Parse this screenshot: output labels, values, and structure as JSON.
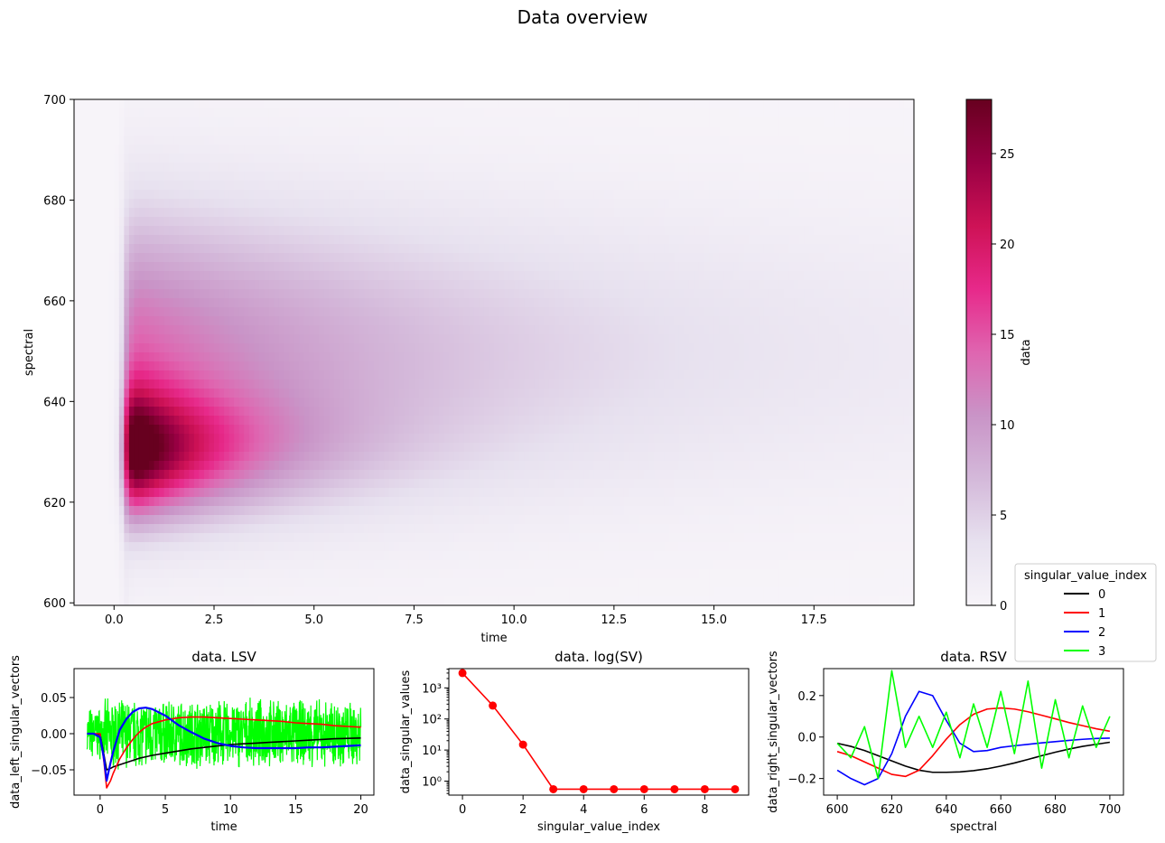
{
  "figure": {
    "title": "Data overview"
  },
  "colors": {
    "cmap": [
      "#f7f4f9",
      "#e7e1ef",
      "#d4b9da",
      "#c994c7",
      "#df65b0",
      "#e7298a",
      "#ce1256",
      "#980043",
      "#67001f"
    ],
    "series": [
      "#000000",
      "#ff0000",
      "#0000ff",
      "#00ff00"
    ]
  },
  "chart_data": [
    {
      "type": "heatmap",
      "xlabel": "time",
      "ylabel": "spectral",
      "colorbar_label": "data",
      "xlim": [
        -1,
        20
      ],
      "ylim": [
        599.5,
        700
      ],
      "clim": [
        0,
        28
      ],
      "xticks": [
        0.0,
        2.5,
        5.0,
        7.5,
        10.0,
        12.5,
        15.0,
        17.5
      ],
      "xtick_labels": [
        "0.0",
        "2.5",
        "5.0",
        "7.5",
        "10.0",
        "12.5",
        "15.0",
        "17.5"
      ],
      "yticks": [
        600,
        620,
        640,
        660,
        680,
        700
      ],
      "ytick_labels": [
        "600",
        "620",
        "640",
        "660",
        "680",
        "700"
      ],
      "cticks": [
        0,
        5,
        10,
        15,
        20,
        25
      ],
      "ctick_labels": [
        "0",
        "5",
        "10",
        "15",
        "20",
        "25"
      ],
      "components": [
        {
          "center": 630,
          "width": 12,
          "amplitude": 28,
          "decay": 0.4
        },
        {
          "center": 650,
          "width": 28,
          "amplitude": 14,
          "decay": 0.1
        }
      ],
      "irf_time": 0.3,
      "legend": {
        "title": "singular_value_index",
        "entries": [
          "0",
          "1",
          "2",
          "3"
        ],
        "placement": "lower right"
      }
    },
    {
      "type": "line",
      "title": "data. LSV",
      "xlabel": "time",
      "ylabel": "data_left_singular_vectors",
      "xlim": [
        -2,
        21
      ],
      "ylim": [
        -0.085,
        0.09
      ],
      "xticks": [
        0,
        5,
        10,
        15,
        20
      ],
      "xtick_labels": [
        "0",
        "5",
        "10",
        "15",
        "20"
      ],
      "yticks": [
        0.05,
        0.0,
        -0.05
      ],
      "ytick_labels": [
        "0.05",
        "0.00",
        "−0.05"
      ],
      "x": [
        -1,
        -0.5,
        0,
        0.3,
        0.5,
        0.8,
        1,
        1.5,
        2,
        2.5,
        3,
        3.5,
        4,
        5,
        6,
        7,
        8,
        9,
        10,
        11,
        12,
        13,
        14,
        15,
        16,
        17,
        18,
        19,
        20
      ],
      "series": [
        {
          "name": "0",
          "values": [
            0,
            0,
            -0.001,
            -0.03,
            -0.05,
            -0.048,
            -0.046,
            -0.043,
            -0.04,
            -0.037,
            -0.034,
            -0.032,
            -0.03,
            -0.027,
            -0.024,
            -0.021,
            -0.019,
            -0.017,
            -0.015,
            -0.014,
            -0.013,
            -0.012,
            -0.011,
            -0.01,
            -0.009,
            -0.008,
            -0.007,
            -0.0065,
            -0.006
          ]
        },
        {
          "name": "1",
          "values": [
            0,
            0,
            0,
            -0.04,
            -0.075,
            -0.065,
            -0.055,
            -0.035,
            -0.02,
            -0.008,
            0.002,
            0.009,
            0.014,
            0.019,
            0.022,
            0.023,
            0.023,
            0.022,
            0.021,
            0.02,
            0.019,
            0.018,
            0.017,
            0.015,
            0.014,
            0.013,
            0.011,
            0.01,
            0.009
          ]
        },
        {
          "name": "2",
          "values": [
            0,
            0,
            -0.005,
            -0.035,
            -0.065,
            -0.04,
            -0.025,
            0.005,
            0.02,
            0.03,
            0.035,
            0.036,
            0.034,
            0.025,
            0.012,
            0.002,
            -0.007,
            -0.013,
            -0.017,
            -0.019,
            -0.02,
            -0.02,
            -0.02,
            -0.02,
            -0.019,
            -0.019,
            -0.018,
            -0.017,
            -0.016
          ]
        },
        {
          "name": "3",
          "noise_band": [
            -0.06,
            0.06
          ]
        }
      ]
    },
    {
      "type": "line",
      "title": "data. log(SV)",
      "xlabel": "singular_value_index",
      "ylabel": "data_singular_values",
      "yscale": "log",
      "xlim": [
        -0.45,
        9.45
      ],
      "ylim_log10": [
        -0.45,
        3.62
      ],
      "xticks": [
        0,
        2,
        4,
        6,
        8
      ],
      "xtick_labels": [
        "0",
        "2",
        "4",
        "6",
        "8"
      ],
      "ytick_labels": [
        "10⁰",
        "10¹",
        "10²",
        "10³"
      ],
      "x": [
        0,
        1,
        2,
        3,
        4,
        5,
        6,
        7,
        8,
        9
      ],
      "values": [
        3000,
        270,
        15,
        0.55,
        0.55,
        0.55,
        0.55,
        0.55,
        0.55,
        0.55
      ]
    },
    {
      "type": "line",
      "title": "data. RSV",
      "xlabel": "spectral",
      "ylabel": "data_right_singular_vectors",
      "xlim": [
        595,
        705
      ],
      "ylim": [
        -0.28,
        0.33
      ],
      "xticks": [
        600,
        620,
        640,
        660,
        680,
        700
      ],
      "xtick_labels": [
        "600",
        "620",
        "640",
        "660",
        "680",
        "700"
      ],
      "yticks": [
        0.2,
        0.0,
        -0.2
      ],
      "ytick_labels": [
        "0.2",
        "0.0",
        "−0.2"
      ],
      "x": [
        600,
        605,
        610,
        615,
        620,
        625,
        630,
        635,
        640,
        645,
        650,
        655,
        660,
        665,
        670,
        675,
        680,
        685,
        690,
        695,
        700
      ],
      "series": [
        {
          "name": "0",
          "values": [
            -0.03,
            -0.045,
            -0.065,
            -0.09,
            -0.115,
            -0.14,
            -0.16,
            -0.17,
            -0.17,
            -0.168,
            -0.162,
            -0.153,
            -0.14,
            -0.125,
            -0.108,
            -0.09,
            -0.073,
            -0.058,
            -0.045,
            -0.035,
            -0.025
          ]
        },
        {
          "name": "1",
          "values": [
            -0.07,
            -0.09,
            -0.12,
            -0.15,
            -0.18,
            -0.19,
            -0.16,
            -0.09,
            -0.01,
            0.06,
            0.11,
            0.135,
            0.14,
            0.135,
            0.122,
            0.105,
            0.088,
            0.07,
            0.055,
            0.04,
            0.028
          ]
        },
        {
          "name": "2",
          "values": [
            -0.16,
            -0.2,
            -0.23,
            -0.2,
            -0.08,
            0.1,
            0.22,
            0.2,
            0.08,
            -0.03,
            -0.07,
            -0.065,
            -0.05,
            -0.042,
            -0.035,
            -0.028,
            -0.022,
            -0.016,
            -0.011,
            -0.007,
            -0.005
          ]
        },
        {
          "name": "3",
          "values": [
            -0.03,
            -0.1,
            0.05,
            -0.2,
            0.32,
            -0.05,
            0.1,
            -0.05,
            0.12,
            -0.1,
            0.16,
            -0.05,
            0.22,
            -0.08,
            0.27,
            -0.15,
            0.18,
            -0.1,
            0.15,
            -0.05,
            0.1
          ]
        }
      ]
    }
  ]
}
